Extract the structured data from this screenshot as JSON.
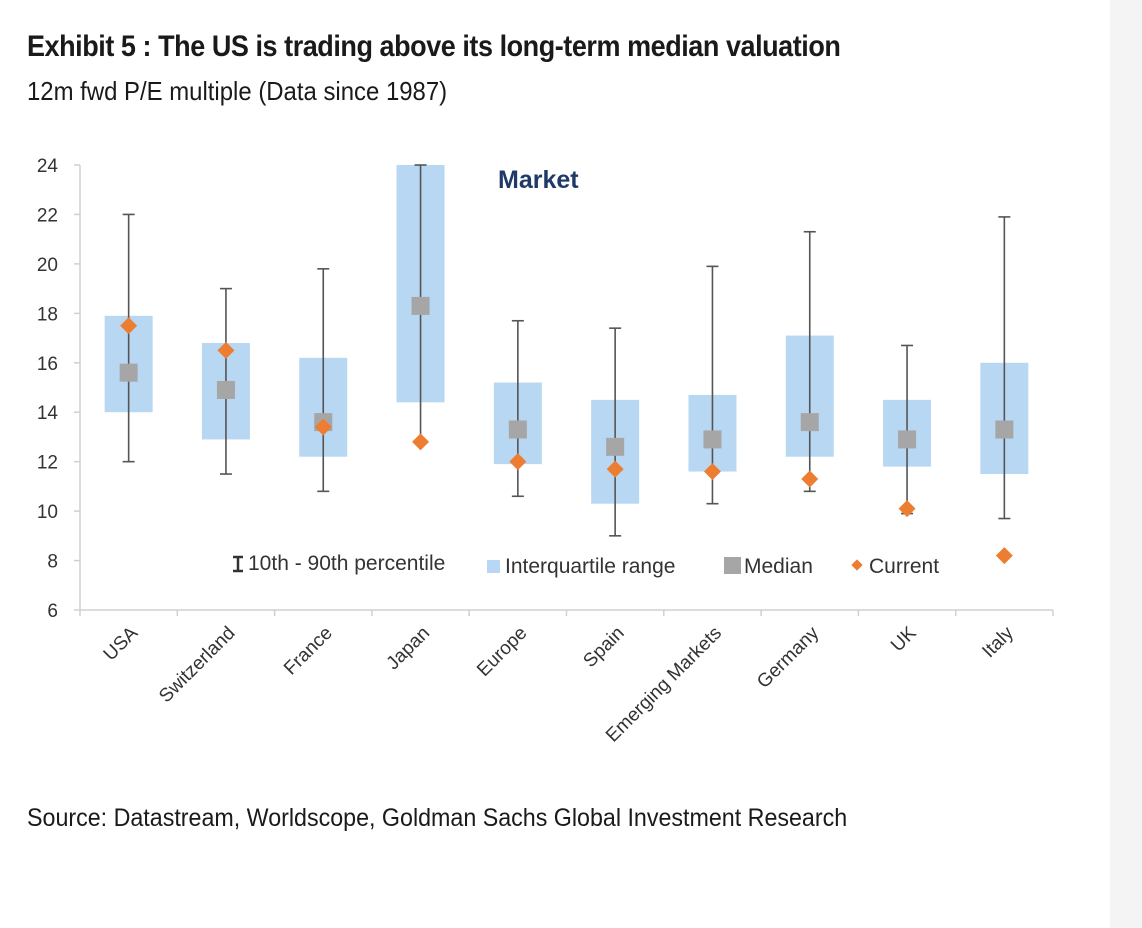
{
  "header": {
    "title": "Exhibit 5 : The US is trading above its long-term median valuation",
    "subtitle": "12m fwd P/E multiple (Data since 1987)"
  },
  "footer": {
    "source": "Source: Datastream, Worldscope, Goldman Sachs Global Investment Research"
  },
  "colors": {
    "iqr": "#b8d7f2",
    "whisker": "#555555",
    "median": "#a6a6a6",
    "current": "#ed7d31",
    "axis": "#d0d0d0"
  },
  "chart_data": {
    "type": "box",
    "title": "Market",
    "ylim": [
      6,
      24
    ],
    "yticks": [
      6,
      8,
      10,
      12,
      14,
      16,
      18,
      20,
      22,
      24
    ],
    "categories": [
      "USA",
      "Switzerland",
      "France",
      "Japan",
      "Europe",
      "Spain",
      "Emerging Markets",
      "Germany",
      "UK",
      "Italy"
    ],
    "p10": [
      12.0,
      11.5,
      10.8,
      12.8,
      10.6,
      9.0,
      10.3,
      10.8,
      9.9,
      9.7
    ],
    "p90": [
      22.0,
      19.0,
      19.8,
      24.0,
      17.7,
      17.4,
      19.9,
      21.3,
      16.7,
      21.9
    ],
    "q1": [
      14.0,
      12.9,
      12.2,
      14.4,
      11.9,
      10.3,
      11.6,
      12.2,
      11.8,
      11.5
    ],
    "q3": [
      17.9,
      16.8,
      16.2,
      24.0,
      15.2,
      14.5,
      14.7,
      17.1,
      14.5,
      16.0
    ],
    "median": [
      15.6,
      14.9,
      13.6,
      18.3,
      13.3,
      12.6,
      12.9,
      13.6,
      12.9,
      13.3
    ],
    "current": [
      17.5,
      16.5,
      13.4,
      12.8,
      12.0,
      11.7,
      11.6,
      11.3,
      10.1,
      8.2
    ],
    "legend": {
      "p10_p90": "10th - 90th percentile",
      "iqr": "Interquartile range",
      "median": "Median",
      "current": "Current"
    },
    "grid": false,
    "legend_position": "bottom-inside"
  }
}
